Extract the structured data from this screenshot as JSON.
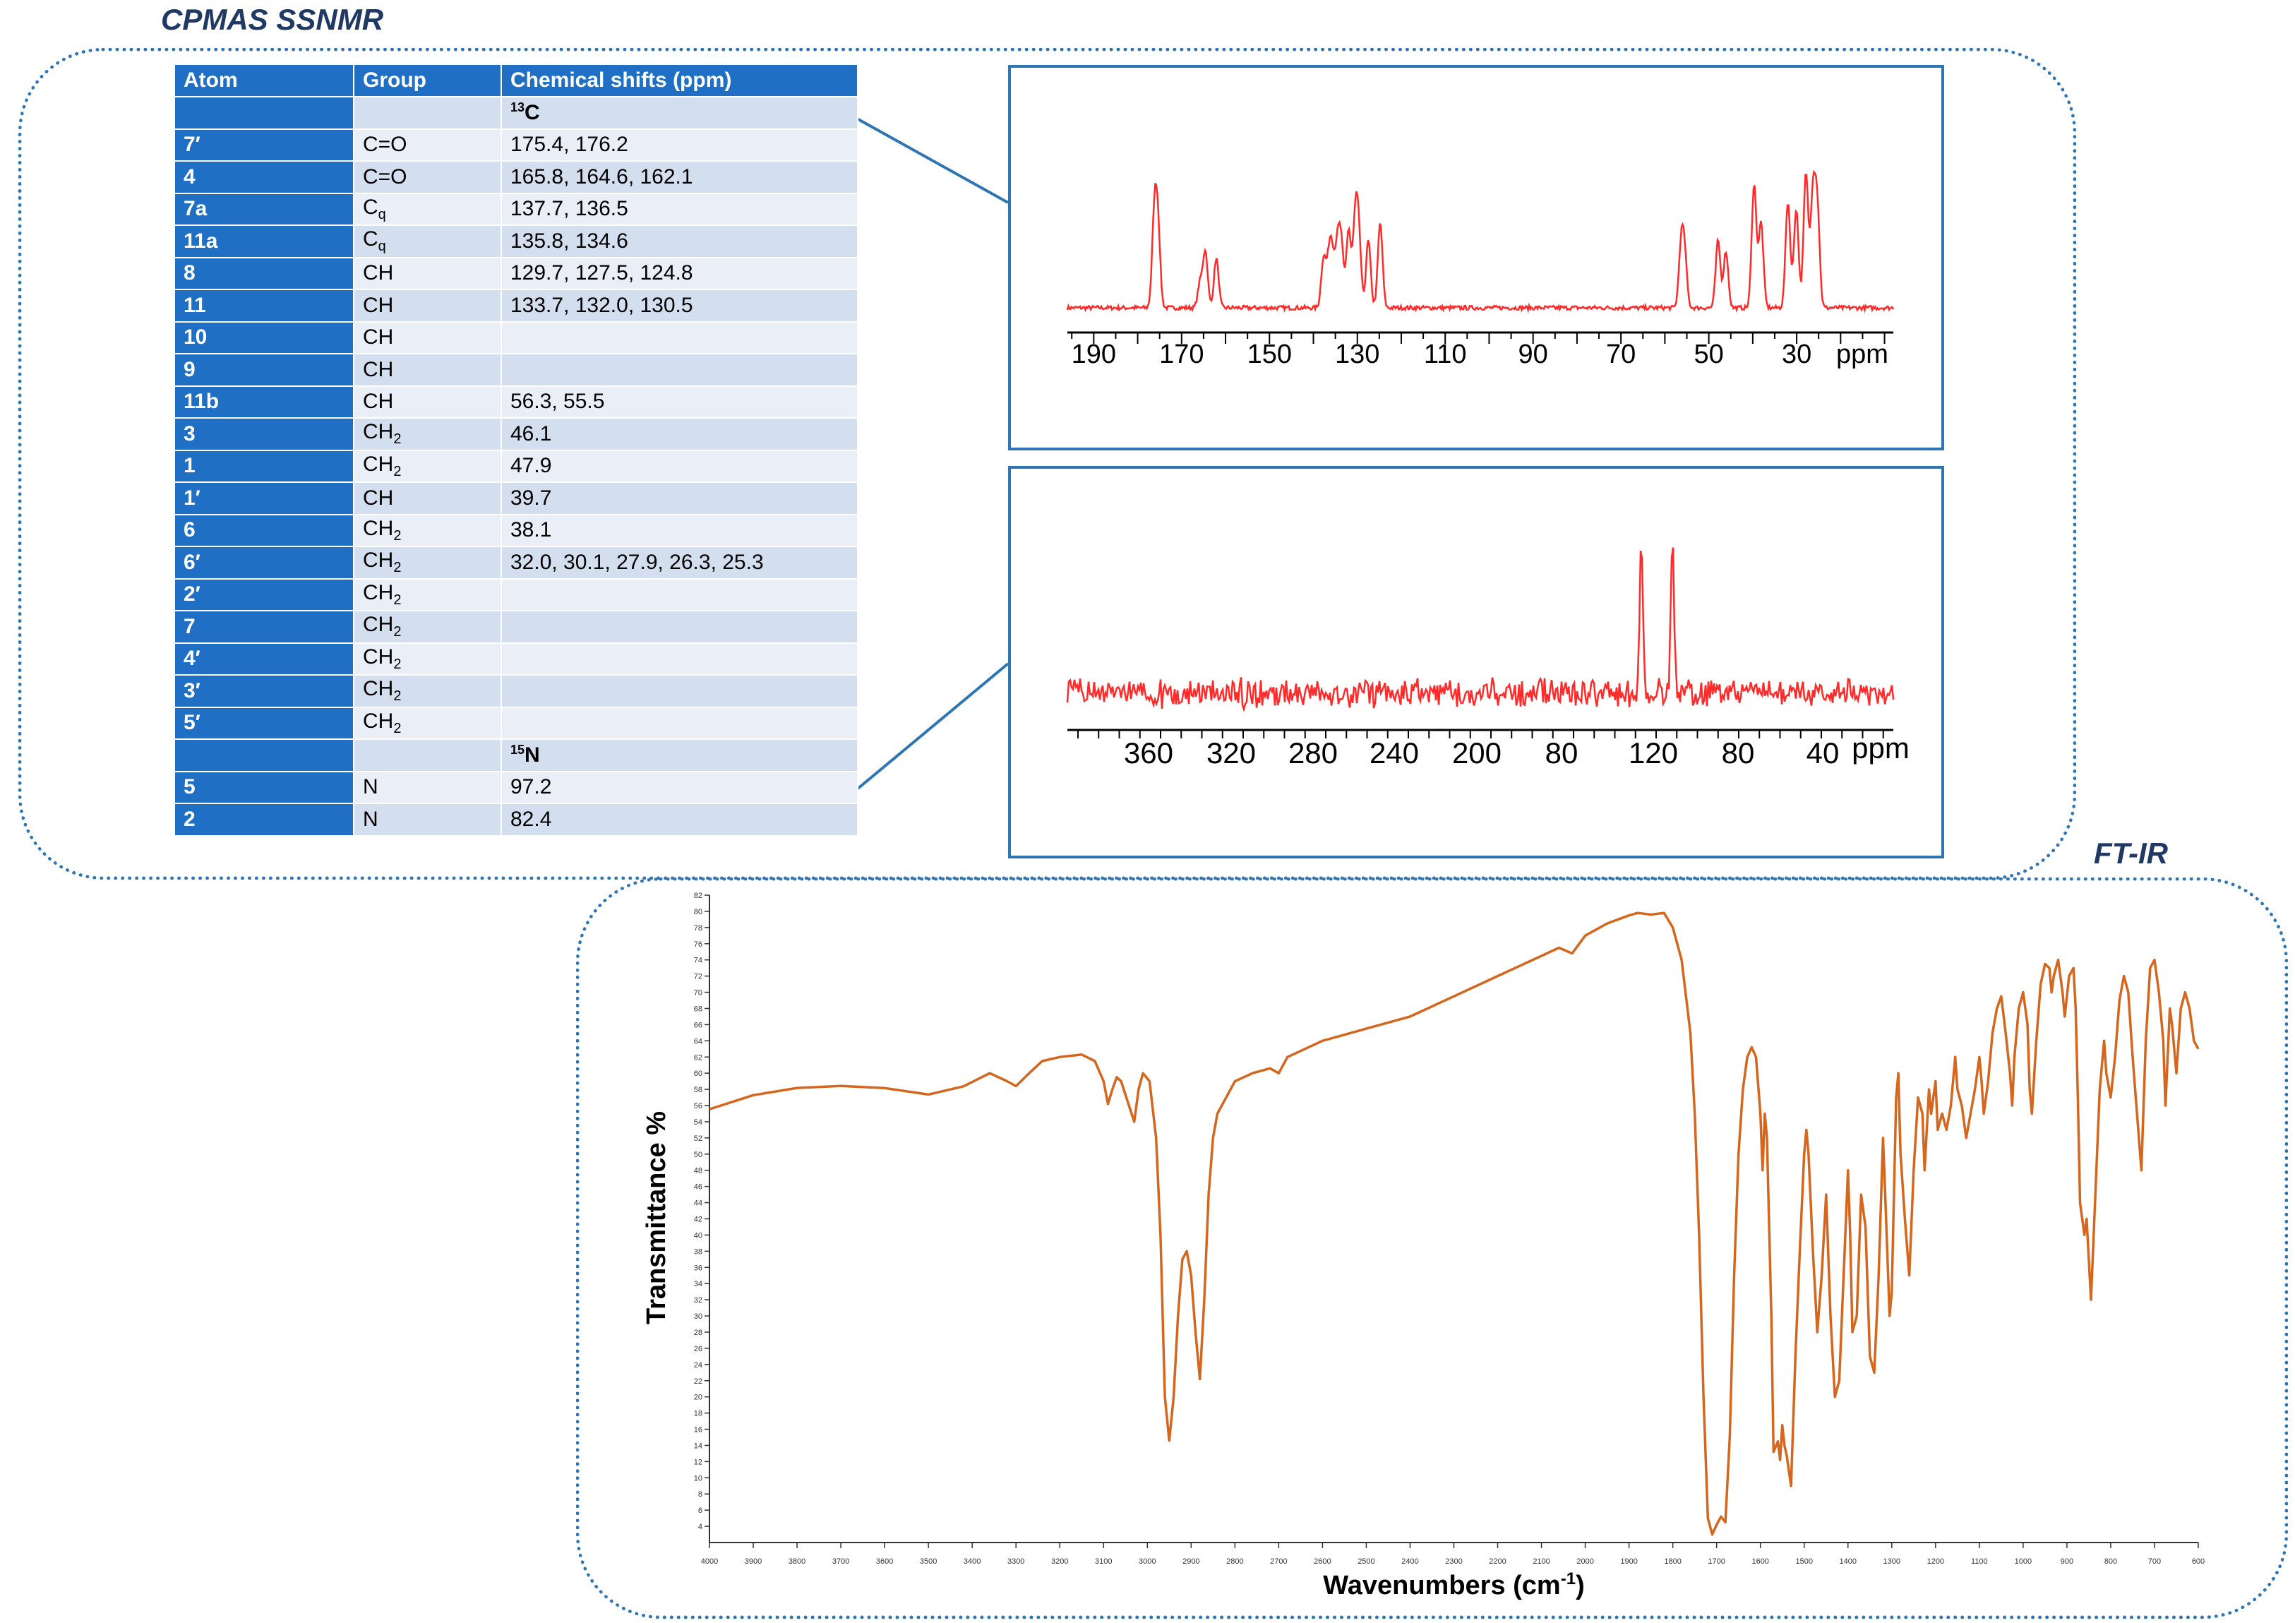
{
  "titles": {
    "nmr": "CPMAS SSNMR",
    "ir": "FT-IR"
  },
  "table": {
    "headers": [
      "Atom",
      "Group",
      "Chemical shifts (ppm)"
    ],
    "c13_label": "C",
    "c13_mass": "13",
    "n15_label": "N",
    "n15_mass": "15",
    "rows_c": [
      {
        "atom": "7′",
        "group": "C=O",
        "sub": "",
        "shifts": "175.4, 176.2"
      },
      {
        "atom": "4",
        "group": "C=O",
        "sub": "",
        "shifts": "165.8, 164.6, 162.1"
      },
      {
        "atom": "7a",
        "group": "C",
        "sub": "q",
        "shifts": "137.7, 136.5"
      },
      {
        "atom": "11a",
        "group": "C",
        "sub": "q",
        "shifts": "135.8, 134.6"
      },
      {
        "atom": "8",
        "group": "CH",
        "sub": "",
        "shifts": "129.7, 127.5, 124.8"
      },
      {
        "atom": "11",
        "group": "CH",
        "sub": "",
        "shifts": "133.7, 132.0, 130.5"
      },
      {
        "atom": "10",
        "group": "CH",
        "sub": "",
        "shifts": ""
      },
      {
        "atom": "9",
        "group": "CH",
        "sub": "",
        "shifts": ""
      },
      {
        "atom": "11b",
        "group": "CH",
        "sub": "",
        "shifts": "56.3, 55.5"
      },
      {
        "atom": "3",
        "group": "CH",
        "sub": "2",
        "shifts": "46.1"
      },
      {
        "atom": "1",
        "group": "CH",
        "sub": "2",
        "shifts": "47.9"
      },
      {
        "atom": "1′",
        "group": "CH",
        "sub": "",
        "shifts": "39.7"
      },
      {
        "atom": "6",
        "group": "CH",
        "sub": "2",
        "shifts": "38.1"
      },
      {
        "atom": "6′",
        "group": "CH",
        "sub": "2",
        "shifts": "32.0, 30.1, 27.9, 26.3, 25.3"
      },
      {
        "atom": "2′",
        "group": "CH",
        "sub": "2",
        "shifts": ""
      },
      {
        "atom": "7",
        "group": "CH",
        "sub": "2",
        "shifts": ""
      },
      {
        "atom": "4′",
        "group": "CH",
        "sub": "2",
        "shifts": ""
      },
      {
        "atom": "3′",
        "group": "CH",
        "sub": "2",
        "shifts": ""
      },
      {
        "atom": "5′",
        "group": "CH",
        "sub": "2",
        "shifts": ""
      }
    ],
    "rows_n": [
      {
        "atom": "5",
        "group": "N",
        "sub": "",
        "shifts": "97.2"
      },
      {
        "atom": "2",
        "group": "N",
        "sub": "",
        "shifts": "82.4"
      }
    ]
  },
  "chart_data": [
    {
      "type": "line",
      "title": "",
      "xlabel": "",
      "x_unit_label": "ppm",
      "x_reversed": true,
      "xlim": [
        196,
        8
      ],
      "xticks": [
        190,
        170,
        150,
        130,
        110,
        90,
        70,
        50,
        30
      ],
      "series": [
        {
          "peaks_ppm": [
            176.2,
            175.4,
            165.8,
            164.6,
            162.1,
            137.7,
            136.5,
            135.8,
            134.6,
            133.7,
            132.0,
            130.5,
            129.7,
            127.5,
            124.8,
            56.3,
            55.5,
            47.9,
            46.1,
            39.7,
            38.1,
            32.0,
            30.1,
            27.9,
            26.3,
            25.3
          ]
        }
      ],
      "color": "#ff2a2a"
    },
    {
      "type": "line",
      "title": "",
      "xlabel": "",
      "x_unit_label": "ppm",
      "x_reversed": true,
      "xtick_labels": [
        "360",
        "320",
        "280",
        "240",
        "200",
        "80",
        "120",
        "80",
        "40"
      ],
      "series": [
        {
          "peaks_ppm": [
            97.2,
            82.4
          ]
        }
      ],
      "color": "#ff2a2a"
    },
    {
      "type": "line",
      "title": "",
      "xlabel": "Wavenumbers (cm",
      "xlabel_sup": "-1",
      "xlabel_close": ")",
      "ylabel": "Transmittance %",
      "x_reversed": true,
      "xlim": [
        4000,
        600
      ],
      "ylim": [
        2,
        82
      ],
      "xticks": [
        4000,
        3900,
        3800,
        3700,
        3600,
        3500,
        3400,
        3300,
        3200,
        3100,
        3000,
        2900,
        2800,
        2700,
        2600,
        2500,
        2400,
        2300,
        2200,
        2100,
        2000,
        1900,
        1800,
        1700,
        1600,
        1500,
        1400,
        1300,
        1200,
        1100,
        1000,
        900,
        800,
        700,
        600
      ],
      "yticks": [
        4,
        6,
        8,
        10,
        12,
        14,
        16,
        18,
        20,
        22,
        24,
        26,
        28,
        30,
        32,
        34,
        36,
        38,
        40,
        42,
        44,
        46,
        48,
        50,
        52,
        54,
        56,
        58,
        60,
        62,
        64,
        66,
        68,
        70,
        72,
        74,
        76,
        78,
        80,
        82
      ],
      "series": [
        {
          "points": [
            [
              4000,
              56
            ],
            [
              3900,
              57
            ],
            [
              3800,
              57.8
            ],
            [
              3700,
              58.6
            ],
            [
              3600,
              58.2
            ],
            [
              3500,
              57.5
            ],
            [
              3420,
              58.5
            ],
            [
              3360,
              60
            ],
            [
              3320,
              59
            ],
            [
              3300,
              58.4
            ],
            [
              3270,
              60
            ],
            [
              3240,
              61.5
            ],
            [
              3200,
              62
            ],
            [
              3150,
              62.3
            ],
            [
              3120,
              61.5
            ],
            [
              3100,
              59
            ],
            [
              3090,
              56.2
            ],
            [
              3080,
              58
            ],
            [
              3070,
              59.5
            ],
            [
              3060,
              59
            ],
            [
              3045,
              56.5
            ],
            [
              3030,
              54
            ],
            [
              3020,
              58
            ],
            [
              3010,
              60
            ],
            [
              2995,
              59
            ],
            [
              2980,
              52
            ],
            [
              2970,
              40
            ],
            [
              2960,
              20
            ],
            [
              2950,
              14.6
            ],
            [
              2940,
              20
            ],
            [
              2930,
              30
            ],
            [
              2920,
              37
            ],
            [
              2910,
              38
            ],
            [
              2900,
              35
            ],
            [
              2890,
              28
            ],
            [
              2880,
              22.2
            ],
            [
              2870,
              32
            ],
            [
              2860,
              45
            ],
            [
              2850,
              52
            ],
            [
              2840,
              55
            ],
            [
              2820,
              57
            ],
            [
              2800,
              59
            ],
            [
              2760,
              60
            ],
            [
              2720,
              60.6
            ],
            [
              2700,
              60
            ],
            [
              2680,
              62
            ],
            [
              2600,
              64
            ],
            [
              2500,
              65.5
            ],
            [
              2400,
              67
            ],
            [
              2300,
              69.5
            ],
            [
              2200,
              72
            ],
            [
              2100,
              74.5
            ],
            [
              2060,
              75.5
            ],
            [
              2030,
              74.8
            ],
            [
              2000,
              77
            ],
            [
              1950,
              78.5
            ],
            [
              1900,
              79.5
            ],
            [
              1880,
              79.8
            ],
            [
              1850,
              79.6
            ],
            [
              1820,
              79.8
            ],
            [
              1800,
              78
            ],
            [
              1780,
              74
            ],
            [
              1760,
              65
            ],
            [
              1750,
              55
            ],
            [
              1740,
              40
            ],
            [
              1730,
              20
            ],
            [
              1720,
              5
            ],
            [
              1710,
              3
            ],
            [
              1700,
              4.2
            ],
            [
              1690,
              5.2
            ],
            [
              1680,
              4.5
            ],
            [
              1670,
              15
            ],
            [
              1660,
              35
            ],
            [
              1650,
              50
            ],
            [
              1640,
              58
            ],
            [
              1630,
              62
            ],
            [
              1620,
              63.2
            ],
            [
              1610,
              62
            ],
            [
              1600,
              55
            ],
            [
              1595,
              48
            ],
            [
              1590,
              55
            ],
            [
              1585,
              52
            ],
            [
              1575,
              30
            ],
            [
              1570,
              13.2
            ],
            [
              1560,
              14.5
            ],
            [
              1555,
              12.2
            ],
            [
              1550,
              16.5
            ],
            [
              1545,
              14
            ],
            [
              1540,
              12.8
            ],
            [
              1530,
              9
            ],
            [
              1520,
              25
            ],
            [
              1510,
              38
            ],
            [
              1500,
              50
            ],
            [
              1495,
              53
            ],
            [
              1490,
              50
            ],
            [
              1480,
              38
            ],
            [
              1470,
              28
            ],
            [
              1460,
              35
            ],
            [
              1450,
              45
            ],
            [
              1440,
              30
            ],
            [
              1430,
              20
            ],
            [
              1420,
              22
            ],
            [
              1410,
              35
            ],
            [
              1400,
              48
            ],
            [
              1395,
              40
            ],
            [
              1390,
              28
            ],
            [
              1380,
              30
            ],
            [
              1370,
              45
            ],
            [
              1360,
              41
            ],
            [
              1350,
              25
            ],
            [
              1340,
              23
            ],
            [
              1330,
              35
            ],
            [
              1320,
              52
            ],
            [
              1315,
              45
            ],
            [
              1305,
              30
            ],
            [
              1300,
              33
            ],
            [
              1290,
              57
            ],
            [
              1285,
              60
            ],
            [
              1280,
              50
            ],
            [
              1270,
              42
            ],
            [
              1260,
              35
            ],
            [
              1250,
              48
            ],
            [
              1240,
              57
            ],
            [
              1230,
              55
            ],
            [
              1225,
              48
            ],
            [
              1215,
              58
            ],
            [
              1210,
              55
            ],
            [
              1200,
              59
            ],
            [
              1195,
              53
            ],
            [
              1185,
              55
            ],
            [
              1175,
              53
            ],
            [
              1165,
              56
            ],
            [
              1155,
              62
            ],
            [
              1150,
              58
            ],
            [
              1140,
              56
            ],
            [
              1130,
              52
            ],
            [
              1120,
              55
            ],
            [
              1110,
              58
            ],
            [
              1100,
              62
            ],
            [
              1095,
              59
            ],
            [
              1090,
              55
            ],
            [
              1080,
              59
            ],
            [
              1070,
              65
            ],
            [
              1060,
              68
            ],
            [
              1050,
              69.5
            ],
            [
              1040,
              65
            ],
            [
              1030,
              60
            ],
            [
              1025,
              56
            ],
            [
              1020,
              62
            ],
            [
              1010,
              68
            ],
            [
              1000,
              70
            ],
            [
              990,
              66
            ],
            [
              985,
              58
            ],
            [
              980,
              55
            ],
            [
              970,
              64
            ],
            [
              960,
              71
            ],
            [
              950,
              73.5
            ],
            [
              940,
              73
            ],
            [
              935,
              70
            ],
            [
              930,
              72
            ],
            [
              920,
              74
            ],
            [
              910,
              70
            ],
            [
              905,
              67
            ],
            [
              895,
              72
            ],
            [
              885,
              73
            ],
            [
              880,
              68
            ],
            [
              875,
              57
            ],
            [
              870,
              44
            ],
            [
              860,
              40
            ],
            [
              855,
              42
            ],
            [
              845,
              32
            ],
            [
              835,
              45
            ],
            [
              825,
              58
            ],
            [
              815,
              64
            ],
            [
              810,
              60
            ],
            [
              800,
              57
            ],
            [
              790,
              62
            ],
            [
              780,
              69
            ],
            [
              770,
              72
            ],
            [
              760,
              70
            ],
            [
              750,
              62
            ],
            [
              740,
              55
            ],
            [
              730,
              48
            ],
            [
              720,
              64
            ],
            [
              710,
              73
            ],
            [
              700,
              74
            ],
            [
              690,
              70
            ],
            [
              680,
              64
            ],
            [
              675,
              56
            ],
            [
              665,
              68
            ],
            [
              660,
              66
            ],
            [
              650,
              60
            ],
            [
              640,
              68
            ],
            [
              630,
              70
            ],
            [
              620,
              68
            ],
            [
              610,
              64
            ],
            [
              600,
              63
            ]
          ]
        }
      ],
      "color": "#d4661e"
    }
  ]
}
